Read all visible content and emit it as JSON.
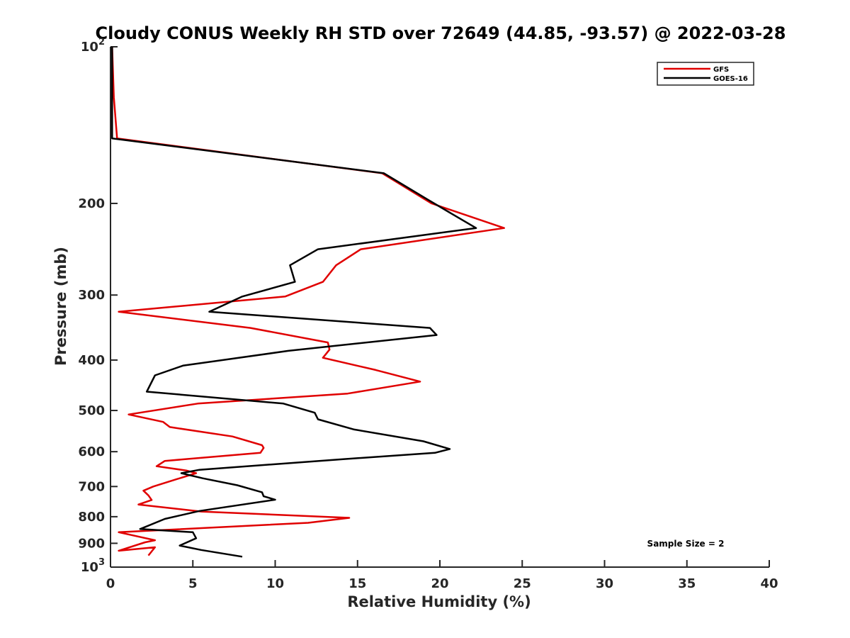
{
  "chart_data": {
    "type": "line",
    "title": "Cloudy CONUS Weekly RH STD over 72649 (44.85, -93.57) @ 2022-03-28",
    "xlabel": "Relative Humidity (%)",
    "ylabel": "Pressure (mb)",
    "xlim": [
      0,
      40
    ],
    "ylim": [
      100,
      1000
    ],
    "y_scale": "log",
    "y_reversed": true,
    "grid": false,
    "legend_position": "top-right",
    "x_ticks": [
      {
        "value": 0,
        "label": "0"
      },
      {
        "value": 5,
        "label": "5"
      },
      {
        "value": 10,
        "label": "10"
      },
      {
        "value": 15,
        "label": "15"
      },
      {
        "value": 20,
        "label": "20"
      },
      {
        "value": 25,
        "label": "25"
      },
      {
        "value": 30,
        "label": "30"
      },
      {
        "value": 35,
        "label": "35"
      },
      {
        "value": 40,
        "label": "40"
      }
    ],
    "y_ticks": [
      {
        "value": 100,
        "label": "10",
        "sup": "2"
      },
      {
        "value": 200,
        "label": "200",
        "sup": ""
      },
      {
        "value": 300,
        "label": "300",
        "sup": ""
      },
      {
        "value": 400,
        "label": "400",
        "sup": ""
      },
      {
        "value": 500,
        "label": "500",
        "sup": ""
      },
      {
        "value": 600,
        "label": "600",
        "sup": ""
      },
      {
        "value": 700,
        "label": "700",
        "sup": ""
      },
      {
        "value": 800,
        "label": "800",
        "sup": ""
      },
      {
        "value": 900,
        "label": "900",
        "sup": ""
      },
      {
        "value": 1000,
        "label": "10",
        "sup": "3"
      }
    ],
    "annotation": "Sample Size = 2",
    "series": [
      {
        "name": "GFS",
        "color": "#e00000",
        "points": [
          [
            0.1,
            100
          ],
          [
            0.2,
            125
          ],
          [
            0.4,
            150
          ],
          [
            16.5,
            175
          ],
          [
            19.5,
            200
          ],
          [
            23.9,
            223
          ],
          [
            15.2,
            245
          ],
          [
            13.7,
            263
          ],
          [
            12.9,
            283
          ],
          [
            10.6,
            302
          ],
          [
            0.5,
            323
          ],
          [
            8.5,
            347
          ],
          [
            13.2,
            370
          ],
          [
            13.3,
            382
          ],
          [
            12.9,
            396
          ],
          [
            16.1,
            418
          ],
          [
            18.8,
            440
          ],
          [
            14.4,
            464
          ],
          [
            5.3,
            485
          ],
          [
            1.1,
            509
          ],
          [
            3.2,
            526
          ],
          [
            3.6,
            538
          ],
          [
            7.4,
            561
          ],
          [
            9.2,
            583
          ],
          [
            9.3,
            590
          ],
          [
            9.1,
            603
          ],
          [
            3.3,
            625
          ],
          [
            2.8,
            640
          ],
          [
            4.6,
            652
          ],
          [
            5.2,
            660
          ],
          [
            4.0,
            678
          ],
          [
            2.6,
            700
          ],
          [
            2.0,
            713
          ],
          [
            2.3,
            728
          ],
          [
            2.5,
            743
          ],
          [
            1.7,
            758
          ],
          [
            5.5,
            782
          ],
          [
            14.5,
            804
          ],
          [
            12.0,
            822
          ],
          [
            0.5,
            857
          ],
          [
            2.7,
            888
          ],
          [
            2.1,
            896
          ],
          [
            0.5,
            930
          ],
          [
            2.7,
            916
          ],
          [
            2.3,
            950
          ]
        ]
      },
      {
        "name": "GOES-16",
        "color": "#000000",
        "points": [
          [
            0.1,
            100
          ],
          [
            0.1,
            125
          ],
          [
            0.1,
            150
          ],
          [
            16.6,
            175
          ],
          [
            19.3,
            197
          ],
          [
            22.2,
            223
          ],
          [
            12.6,
            245
          ],
          [
            10.9,
            263
          ],
          [
            11.2,
            283
          ],
          [
            8.0,
            302
          ],
          [
            6.0,
            323
          ],
          [
            19.4,
            347
          ],
          [
            19.8,
            358
          ],
          [
            10.8,
            384
          ],
          [
            4.4,
            410
          ],
          [
            2.7,
            428
          ],
          [
            2.2,
            460
          ],
          [
            10.5,
            485
          ],
          [
            12.4,
            505
          ],
          [
            12.6,
            520
          ],
          [
            14.8,
            544
          ],
          [
            19.0,
            573
          ],
          [
            20.6,
            593
          ],
          [
            19.7,
            603
          ],
          [
            14.2,
            620
          ],
          [
            5.4,
            650
          ],
          [
            4.3,
            660
          ],
          [
            5.6,
            675
          ],
          [
            7.7,
            696
          ],
          [
            9.2,
            718
          ],
          [
            9.3,
            731
          ],
          [
            10.0,
            742
          ],
          [
            5.4,
            780
          ],
          [
            3.3,
            808
          ],
          [
            1.8,
            845
          ],
          [
            5.0,
            857
          ],
          [
            5.2,
            880
          ],
          [
            4.2,
            909
          ],
          [
            5.5,
            927
          ],
          [
            8.0,
            955
          ]
        ]
      }
    ]
  }
}
